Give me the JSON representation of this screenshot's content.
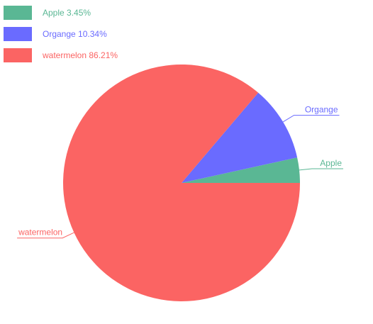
{
  "chart_data": {
    "type": "pie",
    "categories": [
      "Apple",
      "Organge",
      "watermelon"
    ],
    "percentages": [
      3.45,
      10.34,
      86.21
    ],
    "colors": [
      "#5ab794",
      "#6a6bff",
      "#fb6463"
    ],
    "legend": {
      "placement": "top-left",
      "entries": [
        "Apple 3.45%",
        "Organge 10.34%",
        "watermelon 86.21%"
      ]
    },
    "title": ""
  }
}
